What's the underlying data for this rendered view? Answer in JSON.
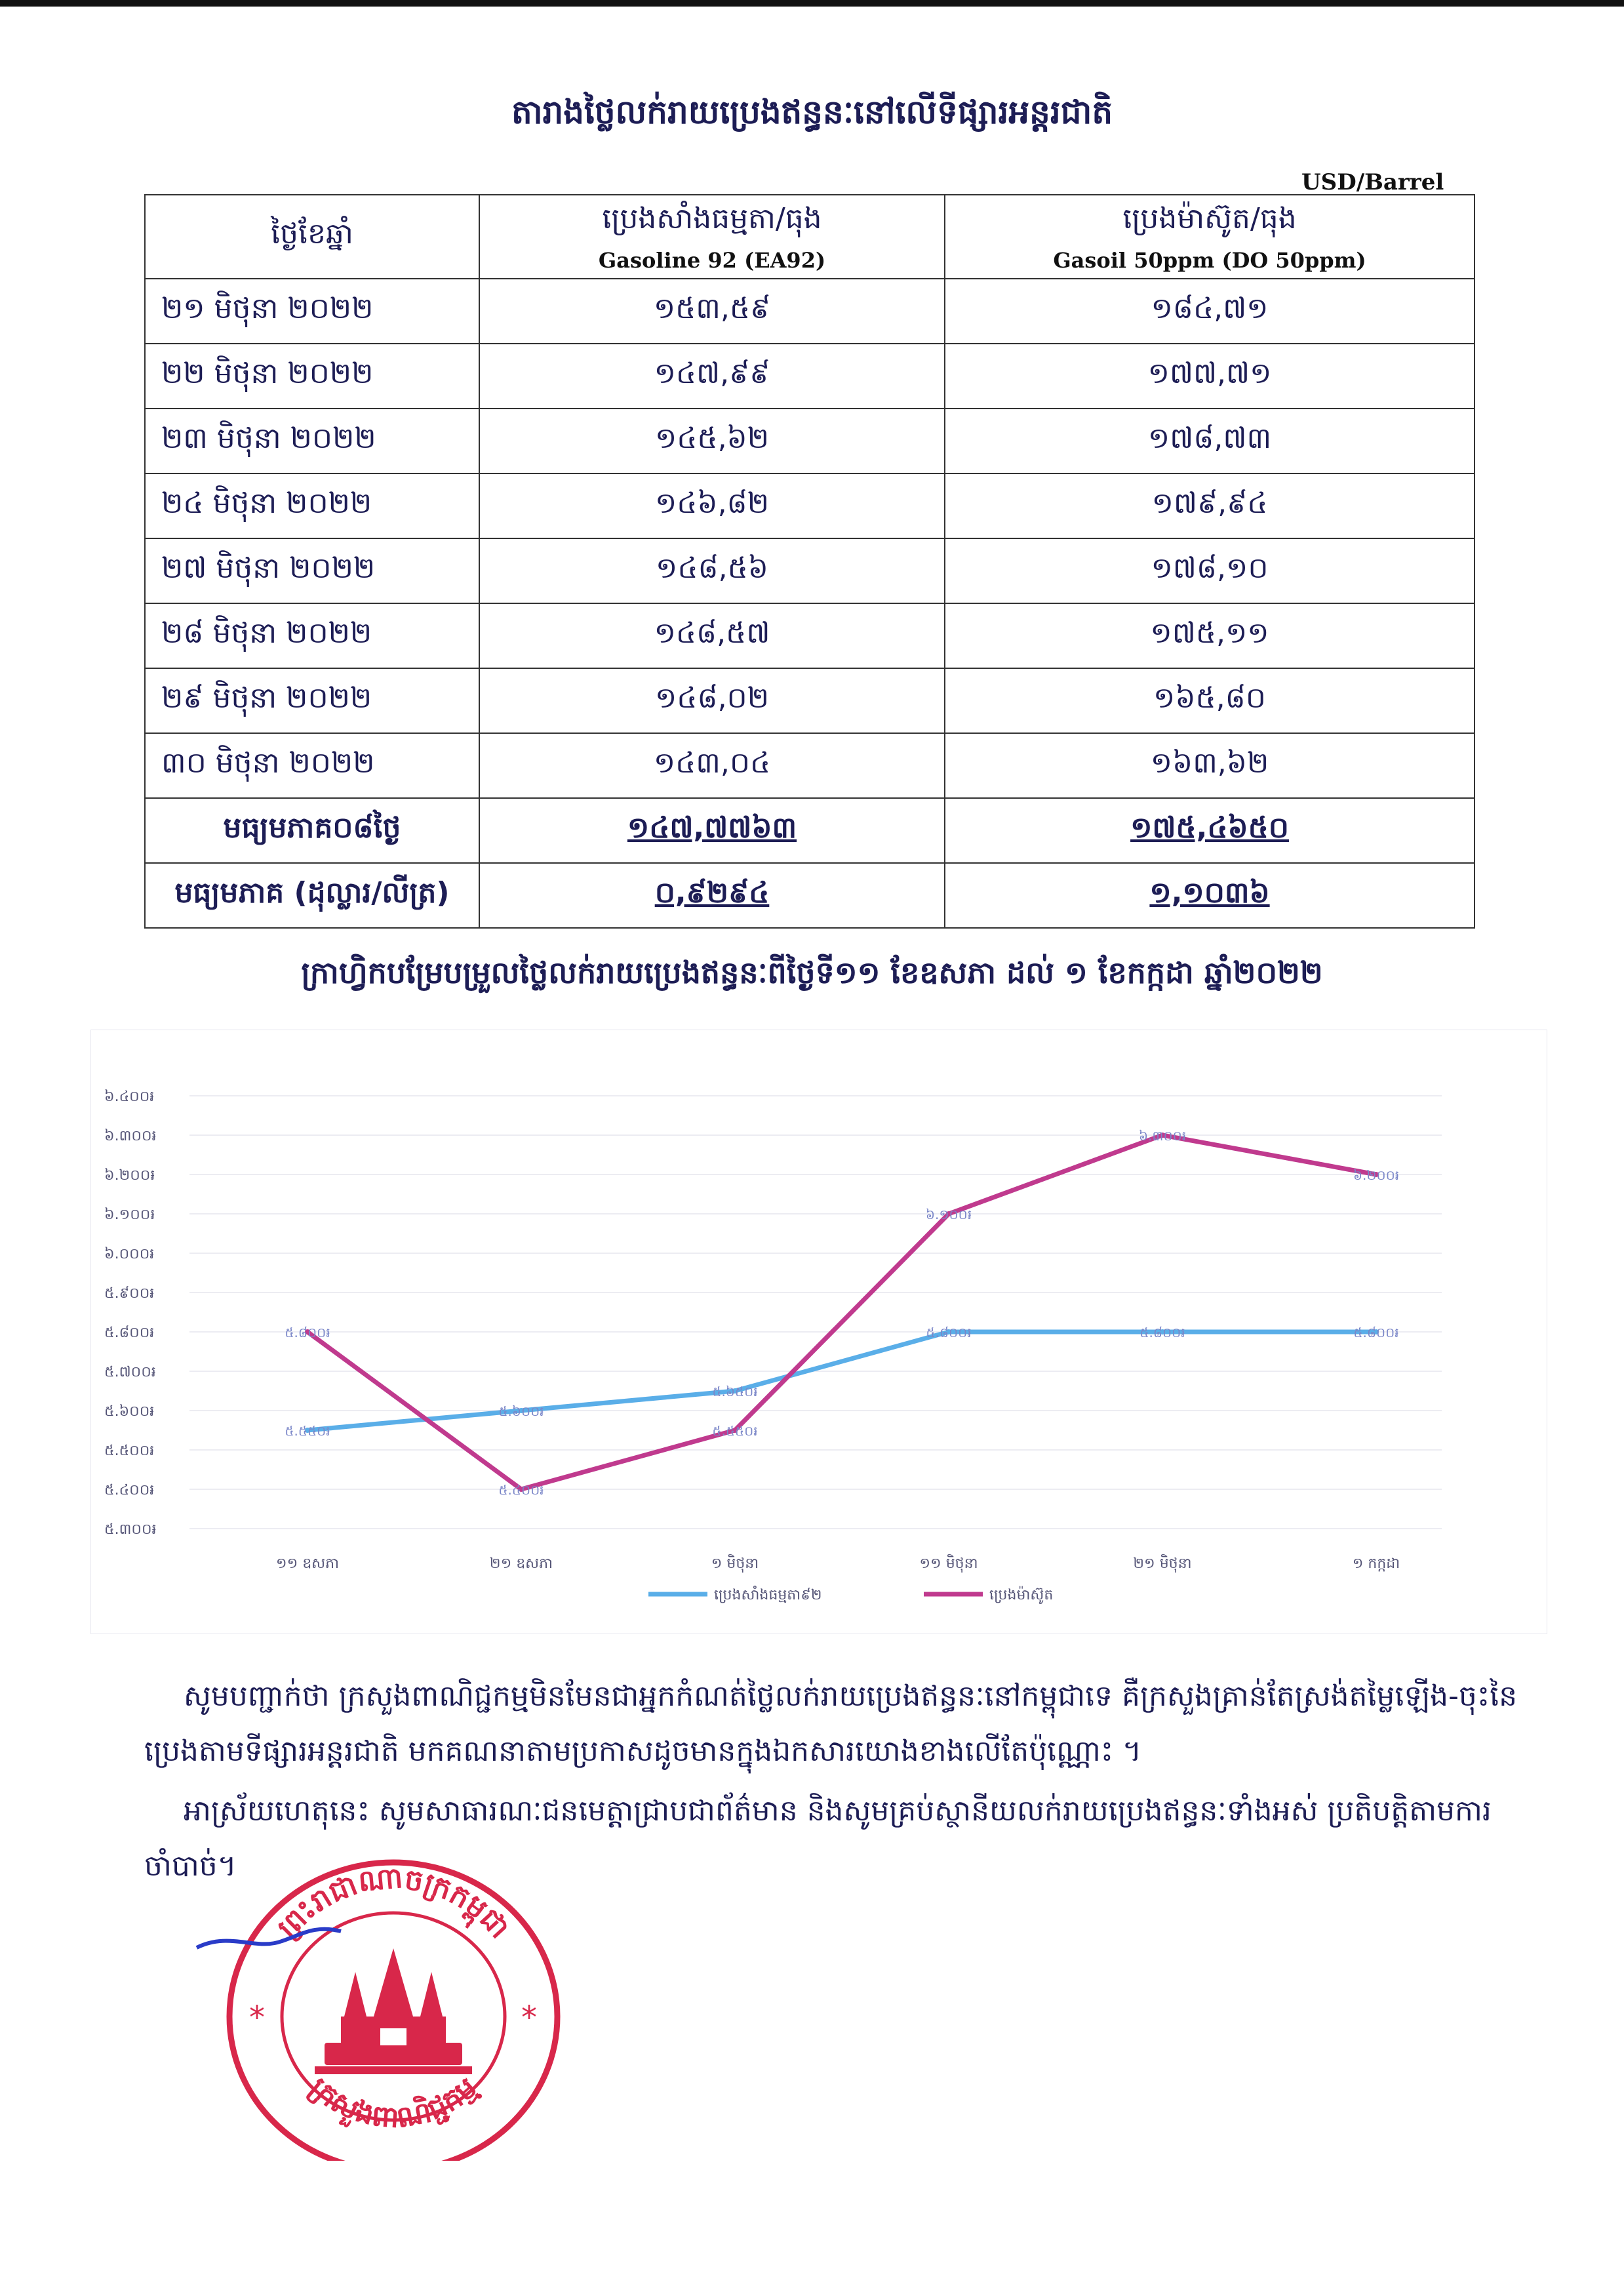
{
  "title": "តារាងថ្លៃលក់រាយប្រេងឥន្ធនៈនៅលើទីផ្សារអន្តរជាតិ",
  "unit": "USD/Barrel",
  "table": {
    "headers": {
      "date": "ថ្ងៃខែឆ្នាំ",
      "gasoline": "ប្រេងសាំងធម្មតា/ធុង",
      "gasoline_sub": "Gasoline 92 (EA92)",
      "diesel": "ប្រេងម៉ាស៊ូត/ធុង",
      "diesel_sub": "Gasoil 50ppm (DO 50ppm)"
    },
    "rows": [
      {
        "date": "២១ មិថុនា ២០២២",
        "gasoline": "១៥៣,៥៩",
        "diesel": "១៨៤,៧១"
      },
      {
        "date": "២២ មិថុនា ២០២២",
        "gasoline": "១៤៧,៩៩",
        "diesel": "១៧៧,៧១"
      },
      {
        "date": "២៣ មិថុនា ២០២២",
        "gasoline": "១៤៥,៦២",
        "diesel": "១៧៨,៧៣"
      },
      {
        "date": "២៤ មិថុនា ២០២២",
        "gasoline": "១៤៦,៨២",
        "diesel": "១៧៩,៩៤"
      },
      {
        "date": "២៧ មិថុនា ២០២២",
        "gasoline": "១៤៨,៥៦",
        "diesel": "១៧៨,១០"
      },
      {
        "date": "២៨ មិថុនា ២០២២",
        "gasoline": "១៤៨,៥៧",
        "diesel": "១៧៥,១១"
      },
      {
        "date": "២៩ មិថុនា ២០២២",
        "gasoline": "១៤៨,០២",
        "diesel": "១៦៥,៨០"
      },
      {
        "date": "៣០ មិថុនា ២០២២",
        "gasoline": "១៤៣,០៤",
        "diesel": "១៦៣,៦២"
      }
    ],
    "avg8": {
      "label": "មធ្យមភាគ០៨ថ្ងៃ",
      "gasoline": "១៤៧,៧៧៦៣",
      "diesel": "១៧៥,៤៦៥០"
    },
    "avg_liter": {
      "label": "មធ្យមភាគ (ដុល្លារ/លីត្រ)",
      "gasoline": "០,៩២៩៤",
      "diesel": "១,១០៣៦"
    }
  },
  "chart_title": "ក្រាហ្វិកបម្រែបម្រួលថ្លៃលក់រាយប្រេងឥន្ធនៈពីថ្ងៃទី១១ ខែឧសភា ដល់ ១ ខែកក្កដា ឆ្នាំ២០២២",
  "chart_data": {
    "type": "line",
    "categories": [
      "១១ ឧសភា",
      "២១ ឧសភា",
      "១ មិថុនា",
      "១១ មិថុនា",
      "២១ មិថុនា",
      "១ កក្កដា"
    ],
    "y_ticks": [
      "៥.៣០០៛",
      "៥.៤០០៛",
      "៥.៥០០៛",
      "៥.៦០០៛",
      "៥.៧០០៛",
      "៥.៨០០៛",
      "៥.៩០០៛",
      "៦.០០០៛",
      "៦.១០០៛",
      "៦.២០០៛",
      "៦.៣០០៛",
      "៦.៤០០៛"
    ],
    "ylim": [
      5300,
      6400
    ],
    "grid": true,
    "legend": "bottom",
    "series": [
      {
        "name": "ប្រេងសាំងធម្មតា៩២",
        "color": "#5aaee8",
        "values": [
          5550,
          5600,
          5650,
          5800,
          5800,
          5800
        ],
        "labels": [
          "៥.៥៥០៛",
          "៥.៦០០៛",
          "៥.៦៥០៛",
          "៥.៨០០៛",
          "៥.៨០០៛",
          "៥.៨០០៛"
        ]
      },
      {
        "name": "ប្រេងម៉ាស៊ូត",
        "color": "#c03a8e",
        "values": [
          5800,
          5400,
          5550,
          6100,
          6300,
          6200
        ],
        "labels": [
          "៥.៨០០៛",
          "៥.៤០០៛",
          "៥.៥៥០៛",
          "៦.១០០៛",
          "៦.៣០០៛",
          "៦.២០០៛"
        ]
      }
    ]
  },
  "paragraph1": "សូមបញ្ជាក់ថា ក្រសួងពាណិជ្ជកម្មមិនមែនជាអ្នកកំណត់ថ្លៃលក់រាយប្រេងឥន្ធនៈនៅកម្ពុជាទេ គឺក្រសួងគ្រាន់តែស្រង់តម្លៃឡើង-ចុះនៃប្រេងតាមទីផ្សារអន្តរជាតិ មកគណនាតាមប្រកាសដូចមានក្នុងឯកសារយោងខាងលើតែប៉ុណ្ណោះ ។",
  "paragraph2": "អាស្រ័យហេតុនេះ សូមសាធារណៈជនមេត្តាជ្រាបជាព័ត៌មាន និងសូមគ្រប់ស្ថានីយលក់រាយប្រេងឥន្ធនៈទាំងអស់ ប្រតិបត្តិតាមការចាំបាច់។",
  "seal": {
    "top_text": "ព្រះរាជាណាចក្រកម្ពុជា",
    "bottom_text": "ក្រសួងពាណិជ្ជកម្ម",
    "color": "#d8274a"
  }
}
